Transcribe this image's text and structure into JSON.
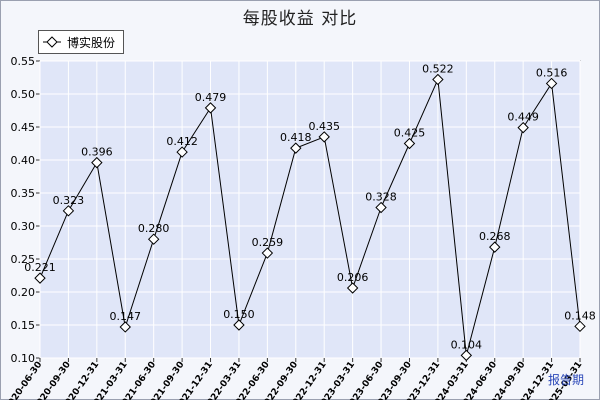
{
  "title": "每股收益  对比",
  "colors": {
    "plot_bg": "#e0e6f8",
    "grid": "#ffffff",
    "line": "#000000",
    "marker_fill": "#ffffff",
    "x_label_color": "#000000",
    "period_label_color": "#2a47b8"
  },
  "chart_data": {
    "type": "line",
    "title": "每股收益  对比",
    "xlabel": "",
    "ylabel": "",
    "period_axis_label": "报告期",
    "ylim": [
      0.1,
      0.55
    ],
    "yticks": [
      "0.10",
      "0.15",
      "0.20",
      "0.25",
      "0.30",
      "0.35",
      "0.40",
      "0.45",
      "0.50",
      "0.55"
    ],
    "grid": true,
    "legend": "top-left",
    "categories": [
      "2020-06-30",
      "2020-09-30",
      "2020-12-31",
      "2021-03-31",
      "2021-06-30",
      "2021-09-30",
      "2021-12-31",
      "2022-03-31",
      "2022-06-30",
      "2022-09-30",
      "2022-12-31",
      "2023-03-31",
      "2023-06-30",
      "2023-09-30",
      "2023-12-31",
      "2024-03-31",
      "2024-06-30",
      "2024-09-30",
      "2024-12-31",
      "2025-03-31"
    ],
    "series": [
      {
        "name": "博实股份",
        "values": [
          0.221,
          0.323,
          0.396,
          0.147,
          0.28,
          0.412,
          0.479,
          0.15,
          0.259,
          0.418,
          0.435,
          0.206,
          0.328,
          0.425,
          0.522,
          0.104,
          0.268,
          0.449,
          0.516,
          0.148
        ],
        "labels": [
          "0.221",
          "0.323",
          "0.396",
          "0.147",
          "0.280",
          "0.412",
          "0.479",
          "0.150",
          "0.259",
          "0.418",
          "0.435",
          "0.206",
          "0.328",
          "0.425",
          "0.522",
          "0.104",
          "0.268",
          "0.449",
          "0.516",
          "0.148"
        ]
      }
    ]
  }
}
